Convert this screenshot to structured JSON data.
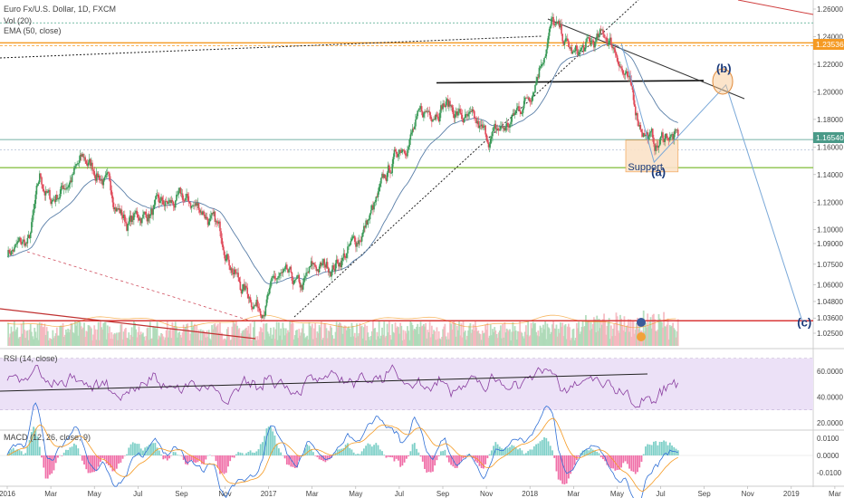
{
  "header": {
    "symbol_title": "Euro Fx/U.S. Dollar, 1D, FXCM",
    "vol_label": "Vol (20)",
    "ema_label": "EMA (50, close)",
    "rsi_label": "RSI (14, close)",
    "macd_label": "MACD (12, 26, close, 9)"
  },
  "colors": {
    "up": "#3a9a58",
    "down": "#e04a5a",
    "orange": "#f59a23",
    "green_line": "#8bc34a",
    "red_line": "#d93838",
    "ema": "#5a7fa8",
    "rsi": "#8a3fa0",
    "rsi_band": "#ece1f7",
    "wave": "#7aa8d8",
    "label_blue": "#1a3a7a"
  },
  "price_tags": {
    "orange_level": "1.23536",
    "current_price": "1.16540"
  },
  "chart_data": [
    {
      "type": "candlestick",
      "title": "Euro Fx/U.S. Dollar, 1D, FXCM",
      "x_ticks": [
        "2016",
        "Mar",
        "May",
        "Jul",
        "Sep",
        "Nov",
        "2017",
        "Mar",
        "May",
        "Jul",
        "Sep",
        "Nov",
        "2018",
        "Mar",
        "May",
        "Jul",
        "Sep",
        "Nov",
        "2019",
        "Mar"
      ],
      "ylim": [
        1.02,
        1.265
      ],
      "y_ticks": [
        "1.26000",
        "1.24000",
        "1.22000",
        "1.20000",
        "1.18000",
        "1.16000",
        "1.14000",
        "1.12000",
        "1.10000",
        "1.09000",
        "1.07500",
        "1.06000",
        "1.04800",
        "1.03600",
        "1.02500"
      ],
      "price_path_months": [
        {
          "t": 0,
          "v": 1.085
        },
        {
          "t": 1.0,
          "v": 1.09
        },
        {
          "t": 1.5,
          "v": 1.135
        },
        {
          "t": 2.0,
          "v": 1.12
        },
        {
          "t": 3.0,
          "v": 1.14
        },
        {
          "t": 3.5,
          "v": 1.15
        },
        {
          "t": 4.3,
          "v": 1.14
        },
        {
          "t": 5.0,
          "v": 1.12
        },
        {
          "t": 5.5,
          "v": 1.105
        },
        {
          "t": 6.0,
          "v": 1.11
        },
        {
          "t": 7.0,
          "v": 1.115
        },
        {
          "t": 8.0,
          "v": 1.12
        },
        {
          "t": 9.0,
          "v": 1.115
        },
        {
          "t": 10.0,
          "v": 1.09
        },
        {
          "t": 10.7,
          "v": 1.06
        },
        {
          "t": 11.6,
          "v": 1.045
        },
        {
          "t": 12.5,
          "v": 1.065
        },
        {
          "t": 13.5,
          "v": 1.055
        },
        {
          "t": 14.0,
          "v": 1.07
        },
        {
          "t": 15.0,
          "v": 1.075
        },
        {
          "t": 16.0,
          "v": 1.09
        },
        {
          "t": 17.0,
          "v": 1.12
        },
        {
          "t": 18.0,
          "v": 1.16
        },
        {
          "t": 19.0,
          "v": 1.18
        },
        {
          "t": 20.0,
          "v": 1.195
        },
        {
          "t": 21.0,
          "v": 1.18
        },
        {
          "t": 22.0,
          "v": 1.165
        },
        {
          "t": 23.0,
          "v": 1.175
        },
        {
          "t": 24.0,
          "v": 1.2
        },
        {
          "t": 25.0,
          "v": 1.25
        },
        {
          "t": 26.0,
          "v": 1.225
        },
        {
          "t": 27.0,
          "v": 1.235
        },
        {
          "t": 27.5,
          "v": 1.24
        },
        {
          "t": 28.0,
          "v": 1.23
        },
        {
          "t": 29.0,
          "v": 1.18
        },
        {
          "t": 29.8,
          "v": 1.16
        },
        {
          "t": 30.3,
          "v": 1.17
        },
        {
          "t": 30.8,
          "v": 1.165
        }
      ],
      "horizontal_levels": [
        {
          "name": "orange",
          "value": 1.235
        },
        {
          "name": "current",
          "value": 1.1654
        },
        {
          "name": "support",
          "value": 1.145
        },
        {
          "name": "red",
          "value": 1.034
        },
        {
          "name": "black",
          "value": 1.207
        },
        {
          "name": "dotted-top",
          "value": 1.25
        }
      ],
      "support_zone": {
        "t0": 28.4,
        "t1": 30.8,
        "v0": 1.142,
        "v1": 1.165
      },
      "wave_points": [
        {
          "t": 28.2,
          "v": 1.235
        },
        {
          "t": 29.7,
          "v": 1.149
        },
        {
          "t": 33.0,
          "v": 1.205
        },
        {
          "t": 36.5,
          "v": 1.034
        }
      ],
      "annotations": [
        {
          "text": "(a)",
          "t": 29.9,
          "v": 1.139
        },
        {
          "text": "(b)",
          "t": 32.9,
          "v": 1.214
        },
        {
          "text": "(c)",
          "t": 36.6,
          "v": 1.03
        },
        {
          "text": "Support",
          "t": 29.3,
          "v": 1.143
        }
      ]
    },
    {
      "type": "line",
      "title": "RSI (14, close)",
      "ylim": [
        15,
        75
      ],
      "y_ticks": [
        "60.0000",
        "40.0000",
        "20.0000"
      ],
      "band": [
        30,
        70
      ]
    },
    {
      "type": "bar",
      "title": "MACD (12, 26, close, 9)",
      "ylim": [
        -0.015,
        0.013
      ],
      "y_ticks": [
        "0.0100",
        "0.0000",
        "-0.0100"
      ]
    }
  ]
}
